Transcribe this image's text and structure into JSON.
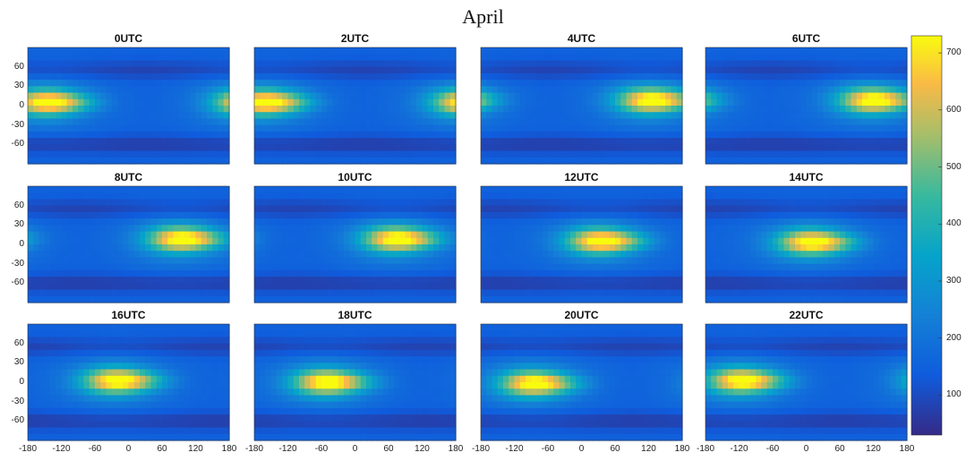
{
  "chart_data": {
    "type": "heatmap",
    "title": "April",
    "panels": [
      {
        "title": "0UTC",
        "center_lon": -150,
        "center_lat": 5
      },
      {
        "title": "2UTC",
        "center_lon": -165,
        "center_lat": 5
      },
      {
        "title": "4UTC",
        "center_lon": 120,
        "center_lat": 8
      },
      {
        "title": "6UTC",
        "center_lon": 115,
        "center_lat": 8
      },
      {
        "title": "8UTC",
        "center_lon": 90,
        "center_lat": 8
      },
      {
        "title": "10UTC",
        "center_lon": 70,
        "center_lat": 8
      },
      {
        "title": "12UTC",
        "center_lon": 30,
        "center_lat": 5
      },
      {
        "title": "14UTC",
        "center_lon": 5,
        "center_lat": 3
      },
      {
        "title": "16UTC",
        "center_lon": -25,
        "center_lat": 2
      },
      {
        "title": "18UTC",
        "center_lon": -55,
        "center_lat": 0
      },
      {
        "title": "20UTC",
        "center_lon": -90,
        "center_lat": -2
      },
      {
        "title": "22UTC",
        "center_lon": -120,
        "center_lat": 2
      }
    ],
    "x_ticks": [
      "-180",
      "-120",
      "-60",
      "0",
      "60",
      "120",
      "180"
    ],
    "y_ticks": [
      "60",
      "30",
      "0",
      "-30",
      "-60"
    ],
    "xlim": [
      -180,
      180
    ],
    "ylim": [
      -90,
      90
    ],
    "colorbar": {
      "ticks": [
        "700",
        "600",
        "500",
        "400",
        "300",
        "200",
        "100"
      ],
      "range": [
        30,
        730
      ],
      "colormap": "parula"
    },
    "peak_value": 650,
    "base_value": 150
  }
}
